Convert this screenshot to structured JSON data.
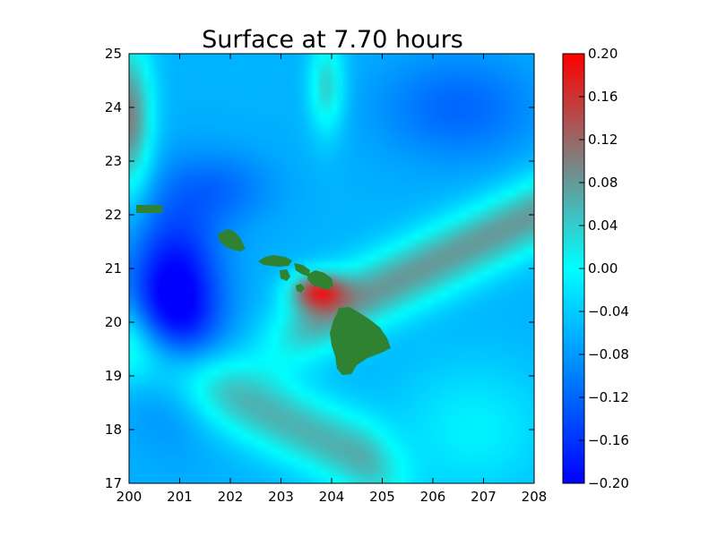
{
  "chart_data": {
    "type": "heatmap",
    "title": "Surface at 7.70 hours",
    "xlabel": "",
    "ylabel": "",
    "xlim": [
      200,
      208
    ],
    "ylim": [
      17,
      25
    ],
    "x_ticks": [
      "200",
      "201",
      "202",
      "203",
      "204",
      "205",
      "206",
      "207",
      "208"
    ],
    "y_ticks": [
      "17",
      "18",
      "19",
      "20",
      "21",
      "22",
      "23",
      "24",
      "25"
    ],
    "colorbar": {
      "range": [
        -0.2,
        0.2
      ],
      "tick_values": [
        0.2,
        0.16,
        0.12,
        0.08,
        0.04,
        0.0,
        -0.04,
        -0.08,
        -0.12,
        -0.16,
        -0.2
      ],
      "tick_labels": [
        "0.20",
        "0.16",
        "0.12",
        "0.08",
        "0.04",
        "0.00",
        "−0.04",
        "−0.08",
        "−0.12",
        "−0.16",
        "−0.20"
      ],
      "colors": [
        {
          "v": -0.2,
          "c": "#0000ff"
        },
        {
          "v": -0.1,
          "c": "#0080ff"
        },
        {
          "v": 0.0,
          "c": "#00ffff"
        },
        {
          "v": 0.1,
          "c": "#808080"
        },
        {
          "v": 0.2,
          "c": "#ff0000"
        }
      ]
    },
    "land_color": "#2e8232",
    "grid": false,
    "legend": "none"
  }
}
